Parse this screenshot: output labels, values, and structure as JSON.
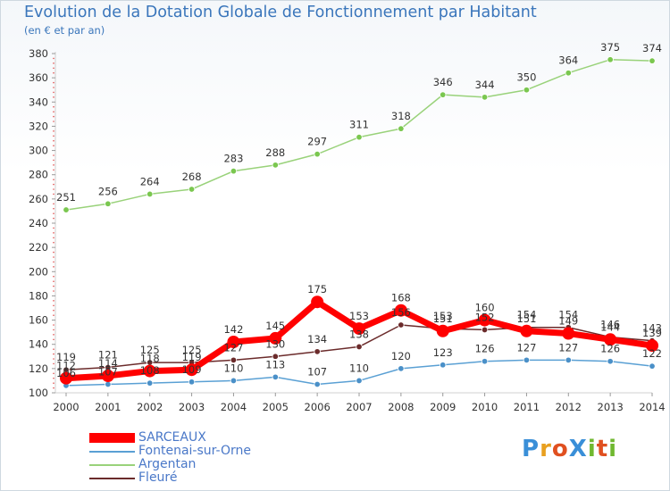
{
  "title": "Evolution de la Dotation Globale de Fonctionnement par Habitant",
  "subtitle": "(en € et par an)",
  "brand": "ProXiti",
  "chart_data": {
    "type": "line",
    "x": [
      2000,
      2001,
      2002,
      2003,
      2004,
      2005,
      2006,
      2007,
      2008,
      2009,
      2010,
      2011,
      2012,
      2013,
      2014
    ],
    "ylim": [
      100,
      380
    ],
    "yticks": [
      100,
      120,
      140,
      160,
      180,
      200,
      220,
      240,
      260,
      280,
      300,
      320,
      340,
      360,
      380
    ],
    "grid": false,
    "legend_position": "bottom-left",
    "series": [
      {
        "name": "Argentan",
        "color": "#99d27a",
        "marker": "#7ac74f",
        "values": [
          251,
          256,
          264,
          268,
          283,
          288,
          297,
          311,
          318,
          346,
          344,
          350,
          364,
          375,
          374
        ]
      },
      {
        "name": "Fleuré",
        "color": "#6b2b2b",
        "marker": "#6b2b2b",
        "values": [
          119,
          121,
          125,
          125,
          127,
          130,
          134,
          138,
          156,
          153,
          152,
          154,
          154,
          146,
          143
        ]
      },
      {
        "name": "Fontenai-sur-Orne",
        "color": "#5aa0d4",
        "marker": "#4a90c8",
        "values": [
          106,
          107,
          108,
          109,
          110,
          113,
          107,
          110,
          120,
          123,
          126,
          127,
          127,
          126,
          122
        ]
      },
      {
        "name": "SARCEAUX",
        "color": "#ff0000",
        "marker": "#ff0000",
        "values": [
          112,
          114,
          118,
          119,
          142,
          145,
          175,
          153,
          168,
          151,
          160,
          151,
          149,
          144,
          139
        ]
      }
    ]
  },
  "legend": [
    {
      "name": "SARCEAUX",
      "color": "#ff0000"
    },
    {
      "name": "Fontenai-sur-Orne",
      "color": "#5aa0d4"
    },
    {
      "name": "Argentan",
      "color": "#99d27a"
    },
    {
      "name": "Fleuré",
      "color": "#6b2b2b"
    }
  ]
}
